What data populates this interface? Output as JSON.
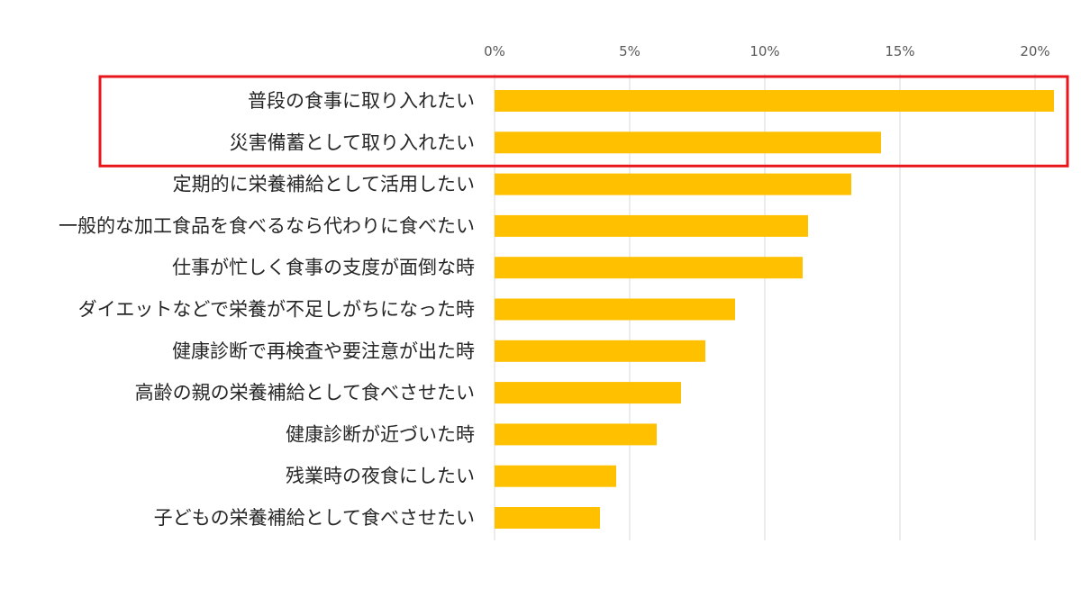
{
  "chart_data": {
    "type": "bar",
    "orientation": "horizontal",
    "categories": [
      "普段の食事に取り入れたい",
      "災害備蓄として取り入れたい",
      "定期的に栄養補給として活用したい",
      "一般的な加工食品を食べるなら代わりに食べたい",
      "仕事が忙しく食事の支度が面倒な時",
      "ダイエットなどで栄養が不足しがちになった時",
      "健康診断で再検査や要注意が出た時",
      "高齢の親の栄養補給として食べさせたい",
      "健康診断が近づいた時",
      "残業時の夜食にしたい",
      "子どもの栄養補給として食べさせたい"
    ],
    "values": [
      20.7,
      14.3,
      13.2,
      11.6,
      11.4,
      8.9,
      7.8,
      6.9,
      6.0,
      4.5,
      3.9
    ],
    "xlim": [
      0,
      21
    ],
    "x_ticks": [
      "0%",
      "5%",
      "10%",
      "15%",
      "20%"
    ],
    "x_tick_values": [
      0,
      5,
      10,
      15,
      20
    ],
    "tick_position": "top",
    "grid": true,
    "bar_color": "#FFC000",
    "grid_color": "#D9D9D9",
    "highlight": {
      "categories": [
        0,
        1
      ],
      "color": "#E8161B"
    },
    "title": "",
    "xlabel": "",
    "ylabel": ""
  }
}
